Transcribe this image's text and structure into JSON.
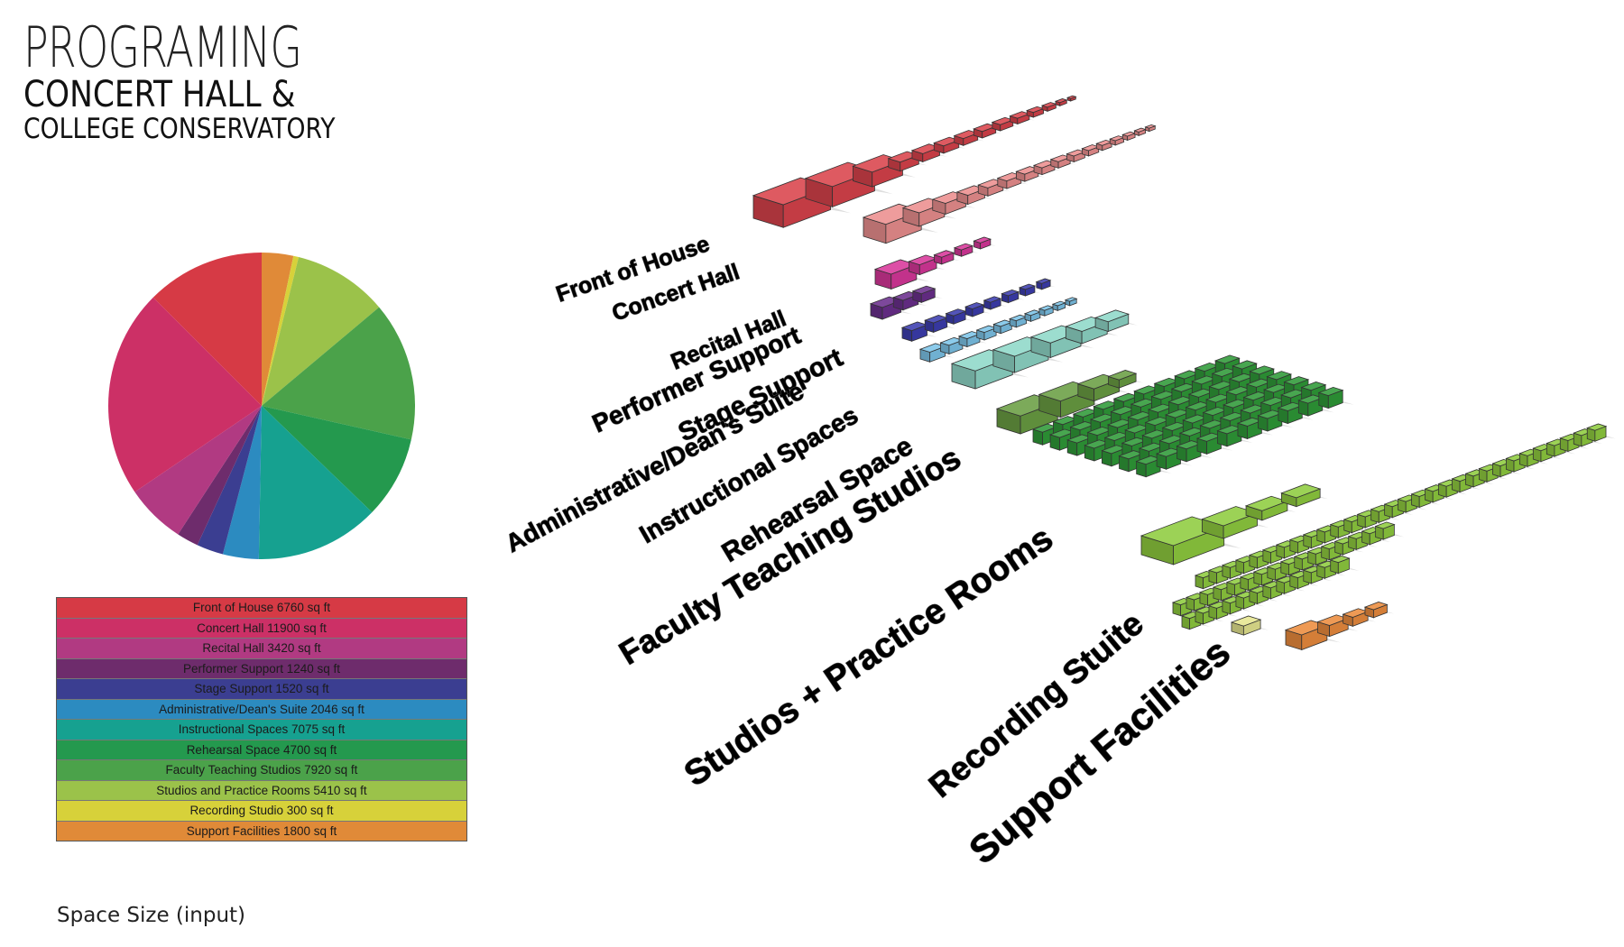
{
  "title": {
    "line1": "PROGRAMING",
    "line2": "CONCERT HALL &",
    "line3": "COLLEGE CONSERVATORY"
  },
  "caption": "Space Size (input)",
  "chart_data": {
    "type": "pie",
    "categories": [
      "Front of House",
      "Concert Hall",
      "Recital Hall",
      "Performer Support",
      "Stage Support",
      "Administrative/Dean's Suite",
      "Instructional Spaces",
      "Rehearsal Space",
      "Faculty Teaching Studios",
      "Studios and Practice Rooms",
      "Recording Studio",
      "Support Facilities"
    ],
    "values": [
      6760,
      11900,
      3420,
      1240,
      1520,
      2046,
      7075,
      4700,
      7920,
      5410,
      300,
      1800
    ],
    "unit": "sq ft",
    "colors": [
      "#d63a45",
      "#cc3066",
      "#b13a82",
      "#6e2c6c",
      "#3b3e91",
      "#2c8bc0",
      "#16a190",
      "#24994e",
      "#4ba24a",
      "#9bc24a",
      "#d7d13a",
      "#e08a38"
    ],
    "legend_position": "below"
  },
  "legend": [
    "Front of House 6760 sq ft",
    "Concert Hall 11900 sq ft",
    "Recital Hall 3420 sq ft",
    "Performer Support 1240 sq ft",
    "Stage Support 1520 sq ft",
    "Administrative/Dean's Suite 2046 sq ft",
    "Instructional Spaces 7075 sq ft",
    "Rehearsal Space 4700 sq ft",
    "Faculty Teaching Studios 7920 sq ft",
    "Studios and Practice Rooms 5410 sq ft",
    "Recording Studio 300 sq ft",
    "Support Facilities 1800 sq ft"
  ],
  "legend_colors": [
    "#d63a45",
    "#cc3066",
    "#b13a82",
    "#6e2c6c",
    "#3b3e91",
    "#2c8bc0",
    "#16a190",
    "#24994e",
    "#4ba24a",
    "#9bc24a",
    "#d7d13a",
    "#e08a38"
  ],
  "massing_labels": [
    "Front of House",
    "Concert Hall",
    "Recital Hall",
    "Performer Support",
    "Stage Support",
    "Administrative/Dean's Suite",
    "Instructional Spaces",
    "Rehearsal Space",
    "Faculty Teaching Studios",
    "Studios + Practice Rooms",
    "Recording Stuite",
    "Support Facilities"
  ],
  "massing_colors": [
    "#d9434c",
    "#ec8f8f",
    "#d8379a",
    "#6b2f8d",
    "#3c3db0",
    "#7cc4e8",
    "#8fd8c8",
    "#6a9e43",
    "#2f9a38",
    "#8fcc3f",
    "#e6e690",
    "#ec8c3e"
  ]
}
